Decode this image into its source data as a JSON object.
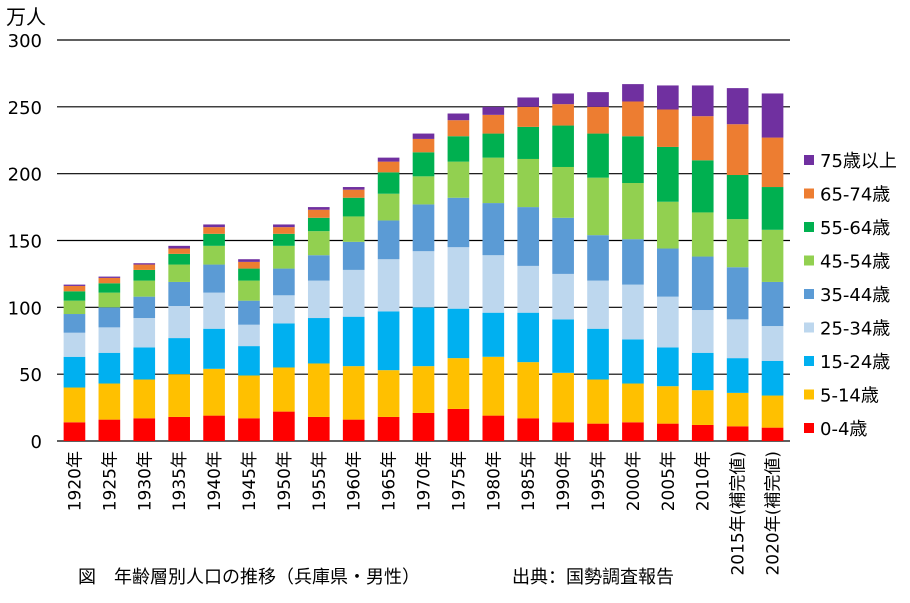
{
  "chart_data": {
    "type": "bar",
    "stacked": true,
    "ylabel": "万人",
    "ylim": [
      0,
      300
    ],
    "yticks": [
      0,
      50,
      100,
      150,
      200,
      250,
      300
    ],
    "grid": true,
    "legend_position": "right",
    "categories": [
      "1920年",
      "1925年",
      "1930年",
      "1935年",
      "1940年",
      "1945年",
      "1950年",
      "1955年",
      "1960年",
      "1965年",
      "1970年",
      "1975年",
      "1980年",
      "1985年",
      "1990年",
      "1995年",
      "2000年",
      "2005年",
      "2010年",
      "2015年(補完値)",
      "2020年(補完値)"
    ],
    "series": [
      {
        "name": "0-4歳",
        "color": "#ff0000",
        "values": [
          14,
          16,
          17,
          18,
          19,
          17,
          22,
          18,
          16,
          18,
          21,
          24,
          19,
          17,
          14,
          13,
          14,
          13,
          12,
          11,
          10
        ]
      },
      {
        "name": "5-14歳",
        "color": "#ffc000",
        "values": [
          26,
          27,
          29,
          32,
          35,
          32,
          33,
          40,
          40,
          35,
          35,
          38,
          44,
          42,
          37,
          33,
          29,
          28,
          26,
          25,
          24
        ]
      },
      {
        "name": "15-24歳",
        "color": "#00b0f0",
        "values": [
          23,
          23,
          24,
          27,
          30,
          22,
          33,
          34,
          37,
          44,
          44,
          37,
          33,
          37,
          40,
          38,
          33,
          29,
          28,
          26,
          26
        ]
      },
      {
        "name": "25-34歳",
        "color": "#bdd7ee",
        "values": [
          18,
          19,
          22,
          24,
          27,
          16,
          21,
          28,
          35,
          39,
          42,
          46,
          43,
          35,
          34,
          36,
          41,
          38,
          32,
          29,
          26
        ]
      },
      {
        "name": "35-44歳",
        "color": "#5b9bd5",
        "values": [
          14,
          15,
          16,
          18,
          21,
          18,
          20,
          19,
          21,
          29,
          35,
          37,
          39,
          44,
          42,
          34,
          34,
          36,
          40,
          39,
          33
        ]
      },
      {
        "name": "45-54歳",
        "color": "#92d050",
        "values": [
          10,
          11,
          12,
          13,
          14,
          15,
          17,
          18,
          19,
          20,
          21,
          27,
          34,
          36,
          38,
          43,
          42,
          35,
          33,
          36,
          39
        ]
      },
      {
        "name": "55-64歳",
        "color": "#00b050",
        "values": [
          7,
          7,
          8,
          8,
          9,
          9,
          9,
          10,
          14,
          16,
          18,
          19,
          18,
          24,
          31,
          33,
          35,
          41,
          39,
          33,
          32
        ]
      },
      {
        "name": "65-74歳",
        "color": "#ed7d31",
        "values": [
          4,
          4,
          4,
          4,
          5,
          5,
          5,
          6,
          6,
          8,
          10,
          12,
          14,
          15,
          16,
          20,
          26,
          28,
          33,
          38,
          37
        ]
      },
      {
        "name": "75歳以上",
        "color": "#7030a0",
        "values": [
          1,
          1,
          1,
          2,
          2,
          2,
          2,
          2,
          2,
          3,
          4,
          5,
          6,
          7,
          8,
          11,
          13,
          18,
          23,
          27,
          33
        ]
      }
    ]
  },
  "caption": {
    "title": "図　年齢層別人口の推移（兵庫県・男性）",
    "source": "出典：国勢調査報告"
  }
}
